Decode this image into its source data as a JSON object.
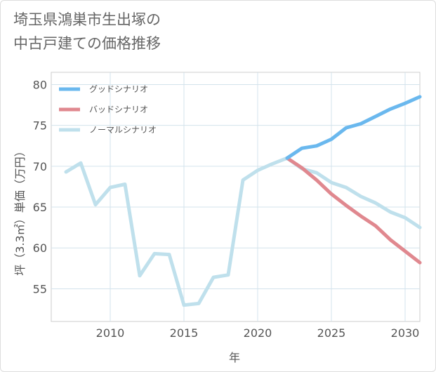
{
  "chart_data": {
    "type": "line",
    "title": [
      "埼玉県鴻巣市生出塚の",
      "中古戸建ての価格推移"
    ],
    "xlabel": "年",
    "ylabel": "坪（3.3㎡）単価（万円）",
    "xlim": [
      2006,
      2031
    ],
    "ylim": [
      51,
      81.5
    ],
    "xticks": [
      2010,
      2015,
      2020,
      2025,
      2030
    ],
    "yticks": [
      55,
      60,
      65,
      70,
      75,
      80
    ],
    "grid": true,
    "legend_position": "top-left",
    "series": [
      {
        "name": "グッドシナリオ",
        "color": "#6ab8ee",
        "x": [
          2022,
          2023,
          2024,
          2025,
          2026,
          2027,
          2028,
          2029,
          2030,
          2031
        ],
        "y": [
          71.0,
          72.2,
          72.5,
          73.3,
          74.7,
          75.2,
          76.1,
          77.0,
          77.7,
          78.5
        ]
      },
      {
        "name": "バッドシナリオ",
        "color": "#e0888f",
        "x": [
          2022,
          2023,
          2024,
          2025,
          2026,
          2027,
          2028,
          2029,
          2030,
          2031
        ],
        "y": [
          71.0,
          69.8,
          68.3,
          66.6,
          65.2,
          63.9,
          62.7,
          61.0,
          59.6,
          58.2
        ]
      },
      {
        "name": "ノーマルシナリオ",
        "color": "#bfe0ec",
        "x": [
          2007,
          2008,
          2009,
          2010,
          2011,
          2012,
          2013,
          2014,
          2015,
          2016,
          2017,
          2018,
          2019,
          2020,
          2021,
          2022,
          2023,
          2024,
          2025,
          2026,
          2027,
          2028,
          2029,
          2030,
          2031
        ],
        "y": [
          69.3,
          70.4,
          65.3,
          67.4,
          67.8,
          56.6,
          59.3,
          59.2,
          53.0,
          53.2,
          56.4,
          56.7,
          68.3,
          69.5,
          70.3,
          71.0,
          69.7,
          69.2,
          68.0,
          67.4,
          66.3,
          65.5,
          64.4,
          63.7,
          62.5
        ]
      }
    ]
  }
}
